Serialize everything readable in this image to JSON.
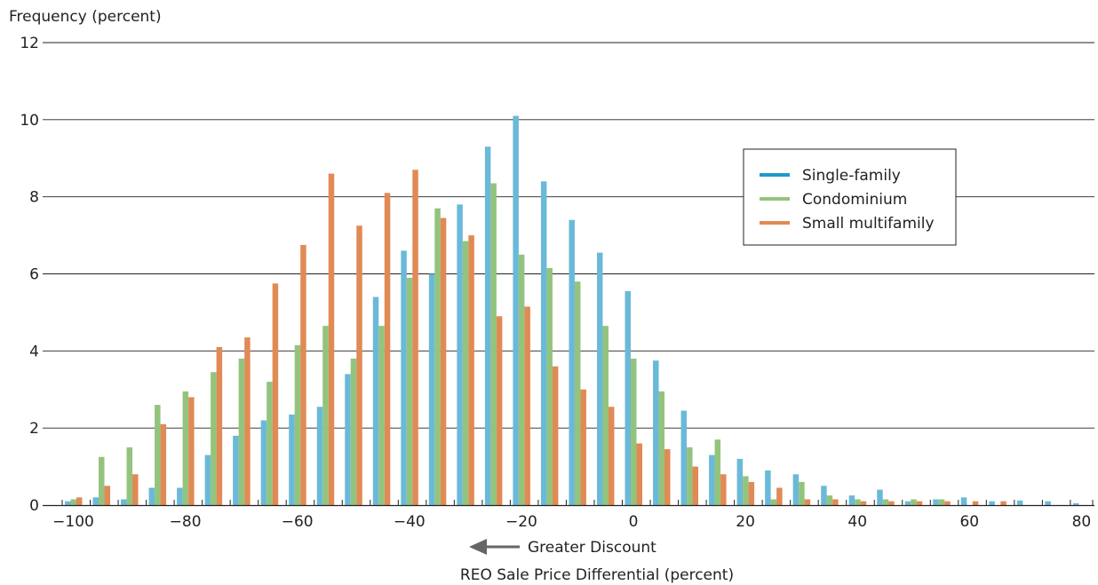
{
  "chart_data": {
    "type": "bar",
    "ylabel": "Frequency (percent)",
    "xlabel": "REO Sale Price Differential (percent)",
    "annotation": "Greater Discount",
    "ylim": [
      0,
      12
    ],
    "xlim": [
      -102,
      82
    ],
    "grid": "horizontal",
    "legend_placement": "right",
    "colors": {
      "Single-family": "#6bb9d8",
      "Condominium": "#93c47d",
      "Small multifamily": "#e08a55",
      "legend_single": "#1e9ac7"
    },
    "categories": [
      -100,
      -95,
      -90,
      -85,
      -80,
      -75,
      -70,
      -65,
      -60,
      -55,
      -50,
      -45,
      -40,
      -35,
      -30,
      -25,
      -20,
      -15,
      -10,
      -5,
      0,
      5,
      10,
      15,
      20,
      25,
      30,
      35,
      40,
      45,
      50,
      55,
      60,
      65,
      70,
      75,
      80
    ],
    "series": [
      {
        "name": "Single-family",
        "values": [
          0.1,
          0.2,
          0.15,
          0.45,
          0.45,
          1.3,
          1.8,
          2.2,
          2.35,
          2.55,
          3.4,
          5.4,
          6.6,
          6.0,
          7.8,
          9.3,
          10.1,
          8.4,
          7.4,
          6.55,
          5.55,
          3.75,
          2.45,
          1.3,
          1.2,
          0.9,
          0.8,
          0.5,
          0.25,
          0.4,
          0.1,
          0.15,
          0.2,
          0.1,
          0.12,
          0.1,
          0.05
        ]
      },
      {
        "name": "Condominium",
        "values": [
          0.15,
          1.25,
          1.5,
          2.6,
          2.95,
          3.45,
          3.8,
          3.2,
          4.15,
          4.65,
          3.8,
          4.65,
          5.9,
          7.7,
          6.85,
          8.35,
          6.5,
          6.15,
          5.8,
          4.65,
          3.8,
          2.95,
          1.5,
          1.7,
          0.75,
          0.15,
          0.6,
          0.25,
          0.15,
          0.15,
          0.15,
          0.15,
          0.0,
          0.0,
          0.0,
          0.0,
          0.0
        ]
      },
      {
        "name": "Small multifamily",
        "values": [
          0.2,
          0.5,
          0.8,
          2.1,
          2.8,
          4.1,
          4.35,
          5.75,
          6.75,
          8.6,
          7.25,
          8.1,
          8.7,
          7.45,
          7.0,
          4.9,
          5.15,
          3.6,
          3.0,
          2.55,
          1.6,
          1.45,
          1.0,
          0.8,
          0.6,
          0.45,
          0.15,
          0.15,
          0.1,
          0.1,
          0.1,
          0.1,
          0.1,
          0.1,
          0.0,
          0.0,
          0.0
        ]
      }
    ],
    "yticks": [
      "0",
      "2",
      "4",
      "6",
      "8",
      "10",
      "12"
    ],
    "xticks": [
      "−100",
      "−80",
      "−60",
      "−40",
      "−20",
      "0",
      "20",
      "40",
      "60",
      "80"
    ]
  }
}
